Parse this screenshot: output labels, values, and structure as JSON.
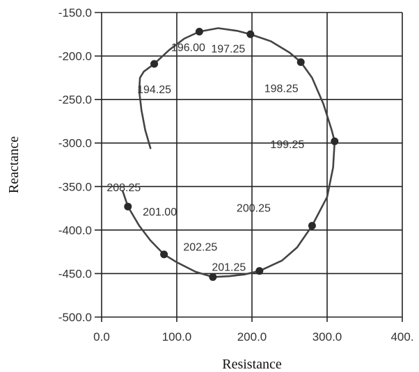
{
  "chart_data": {
    "type": "line",
    "title": "",
    "xlabel": "Resistance",
    "ylabel": "Reactance",
    "xlim": [
      0,
      400
    ],
    "ylim": [
      -500,
      -150
    ],
    "grid": true,
    "x_ticks": [
      {
        "value": 0,
        "label": "0.0"
      },
      {
        "value": 100,
        "label": "100.0"
      },
      {
        "value": 200,
        "label": "200.0"
      },
      {
        "value": 300,
        "label": "300.0"
      },
      {
        "value": 400,
        "label": "400."
      }
    ],
    "y_ticks": [
      {
        "value": -150,
        "label": "-150.0"
      },
      {
        "value": -200,
        "label": "-200.0"
      },
      {
        "value": -250,
        "label": "-250.0"
      },
      {
        "value": -300,
        "label": "-300.0"
      },
      {
        "value": -350,
        "label": "-350.0"
      },
      {
        "value": -400,
        "label": "-400.0"
      },
      {
        "value": -450,
        "label": "-450.0"
      },
      {
        "value": -500,
        "label": "-500.0"
      }
    ],
    "series": [
      {
        "x": [
          65,
          58,
          53,
          50,
          51,
          56,
          70,
          90,
          110,
          130,
          155,
          180,
          198,
          225,
          250,
          265,
          280,
          295,
          306,
          310,
          308,
          300,
          280,
          260,
          240,
          210,
          190,
          170,
          148,
          125,
          100,
          83,
          65,
          50,
          35,
          28
        ],
        "y": [
          -306,
          -285,
          -262,
          -240,
          -225,
          -218,
          -209,
          -193,
          -180,
          -172,
          -168,
          -171,
          -175,
          -183,
          -196,
          -207,
          -225,
          -255,
          -285,
          -298,
          -328,
          -362,
          -395,
          -420,
          -435,
          -447,
          -451,
          -453,
          -454,
          -448,
          -437,
          -428,
          -412,
          -395,
          -373,
          -355
        ]
      }
    ],
    "markers": [
      {
        "x": 70,
        "y": -209,
        "label": "194.25"
      },
      {
        "x": 130,
        "y": -172,
        "label": "196.00"
      },
      {
        "x": 198,
        "y": -175,
        "label": "197.25"
      },
      {
        "x": 265,
        "y": -207,
        "label": "198.25"
      },
      {
        "x": 310,
        "y": -298,
        "label": "199.25"
      },
      {
        "x": 280,
        "y": -395,
        "label": "200.25"
      },
      {
        "x": 210,
        "y": -447,
        "label": "201.25"
      },
      {
        "x": 148,
        "y": -454,
        "label": "202.25"
      },
      {
        "x": 83,
        "y": -428,
        "label": "201.00"
      },
      {
        "x": 35,
        "y": -373,
        "label": "208.25"
      }
    ]
  }
}
